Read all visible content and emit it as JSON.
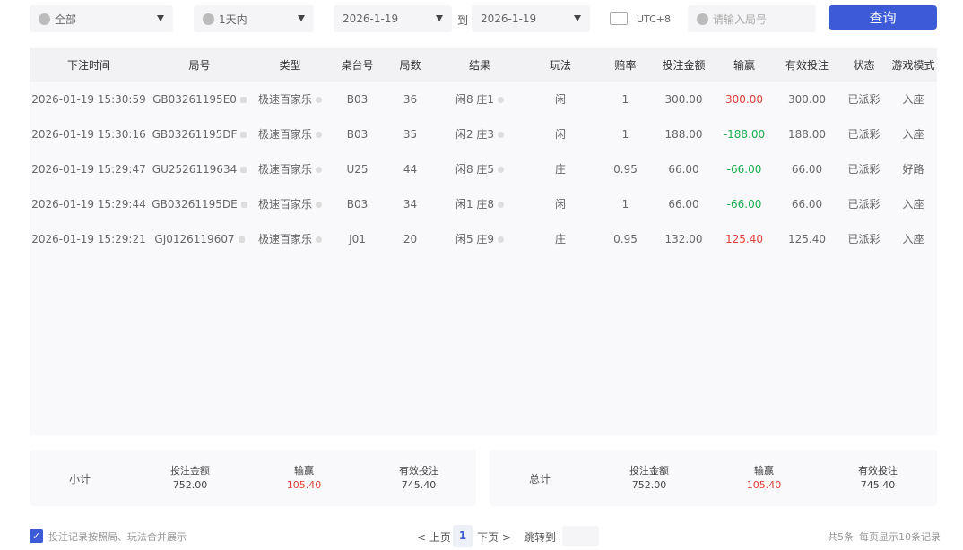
{
  "filters": {
    "category": "全部",
    "range": "1天内",
    "start_date": "2026-1-19",
    "to_label": "到",
    "end_date": "2026-1-19",
    "timezone": "UTC+8",
    "round_placeholder": "请输入局号",
    "query_label": "查询"
  },
  "table": {
    "headers": [
      "下注时间",
      "局号",
      "类型",
      "桌台号",
      "局数",
      "结果",
      "玩法",
      "赔率",
      "投注金额",
      "输赢",
      "有效投注",
      "状态",
      "游戏模式"
    ],
    "rows": [
      [
        "2026-01-19 15:30:59",
        "GB03261195E0",
        "极速百家乐",
        "B03",
        "36",
        "闲8 庄1",
        "闲",
        "1",
        "300.00",
        "300.00",
        "300.00",
        "已派彩",
        "入座"
      ],
      [
        "2026-01-19 15:30:16",
        "GB03261195DF",
        "极速百家乐",
        "B03",
        "35",
        "闲2 庄3",
        "闲",
        "1",
        "188.00",
        "-188.00",
        "188.00",
        "已派彩",
        "入座"
      ],
      [
        "2026-01-19 15:29:47",
        "GU2526119634",
        "极速百家乐",
        "U25",
        "44",
        "闲8 庄5",
        "庄",
        "0.95",
        "66.00",
        "-66.00",
        "66.00",
        "已派彩",
        "好路"
      ],
      [
        "2026-01-19 15:29:44",
        "GB03261195DE",
        "极速百家乐",
        "B03",
        "34",
        "闲1 庄8",
        "闲",
        "1",
        "66.00",
        "-66.00",
        "66.00",
        "已派彩",
        "入座"
      ],
      [
        "2026-01-19 15:29:21",
        "GJ0126119607",
        "极速百家乐",
        "J01",
        "20",
        "闲5 庄9",
        "庄",
        "0.95",
        "132.00",
        "125.40",
        "125.40",
        "已派彩",
        "入座"
      ]
    ]
  },
  "subtotal": {
    "label": "小计",
    "bet_label": "投注金额",
    "bet": "752.00",
    "win_label": "输赢",
    "win": "105.40",
    "valid_label": "有效投注",
    "valid": "745.40"
  },
  "total": {
    "label": "总计",
    "bet_label": "投注金额",
    "bet": "752.00",
    "win_label": "输赢",
    "win": "105.40",
    "valid_label": "有效投注",
    "valid": "745.40"
  },
  "footer": {
    "merge_label": "投注记录按照局、玩法合并展示",
    "merge_checked": true,
    "prev": "< 上页",
    "page": "1",
    "next": "下页 >",
    "jump_label": "跳转到",
    "total": "共5条",
    "per_page": "每页显示10条记录"
  },
  "colors": {
    "accent": "#3d5bd6",
    "win": "#e0403a",
    "loss": "#1aad4e"
  }
}
